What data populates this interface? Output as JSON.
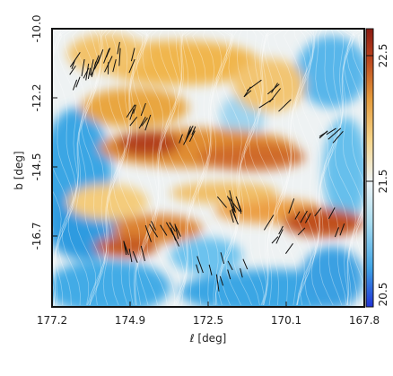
{
  "chart_data": {
    "type": "heatmap",
    "xlabel": "ℓ [deg]",
    "ylabel": "b [deg]",
    "x_reversed": true,
    "x_ticks": [
      "177.2",
      "174.9",
      "172.5",
      "170.1",
      "167.8"
    ],
    "x_tick_values": [
      177.2,
      174.9,
      172.5,
      170.1,
      167.8
    ],
    "y_ticks": [
      "-10.0",
      "-12.2",
      "-14.5",
      "-16.7"
    ],
    "y_tick_values": [
      -10.0,
      -12.2,
      -14.5,
      -16.7
    ],
    "xlim": [
      177.2,
      167.8
    ],
    "ylim": [
      -18.9,
      -10.0
    ],
    "colorbar": {
      "ticks": [
        "22.5",
        "21.5",
        "20.5"
      ],
      "tick_values": [
        22.5,
        21.5,
        20.5
      ],
      "range": [
        20.5,
        22.5
      ],
      "colormap": [
        "#1f33d6",
        "#3fa4e6",
        "#a8dcf0",
        "#eef4f6",
        "#f6d58a",
        "#e59a3a",
        "#b7401c",
        "#8a1a12"
      ]
    },
    "overlays": [
      "drapery texture",
      "polarization vector segments"
    ]
  }
}
